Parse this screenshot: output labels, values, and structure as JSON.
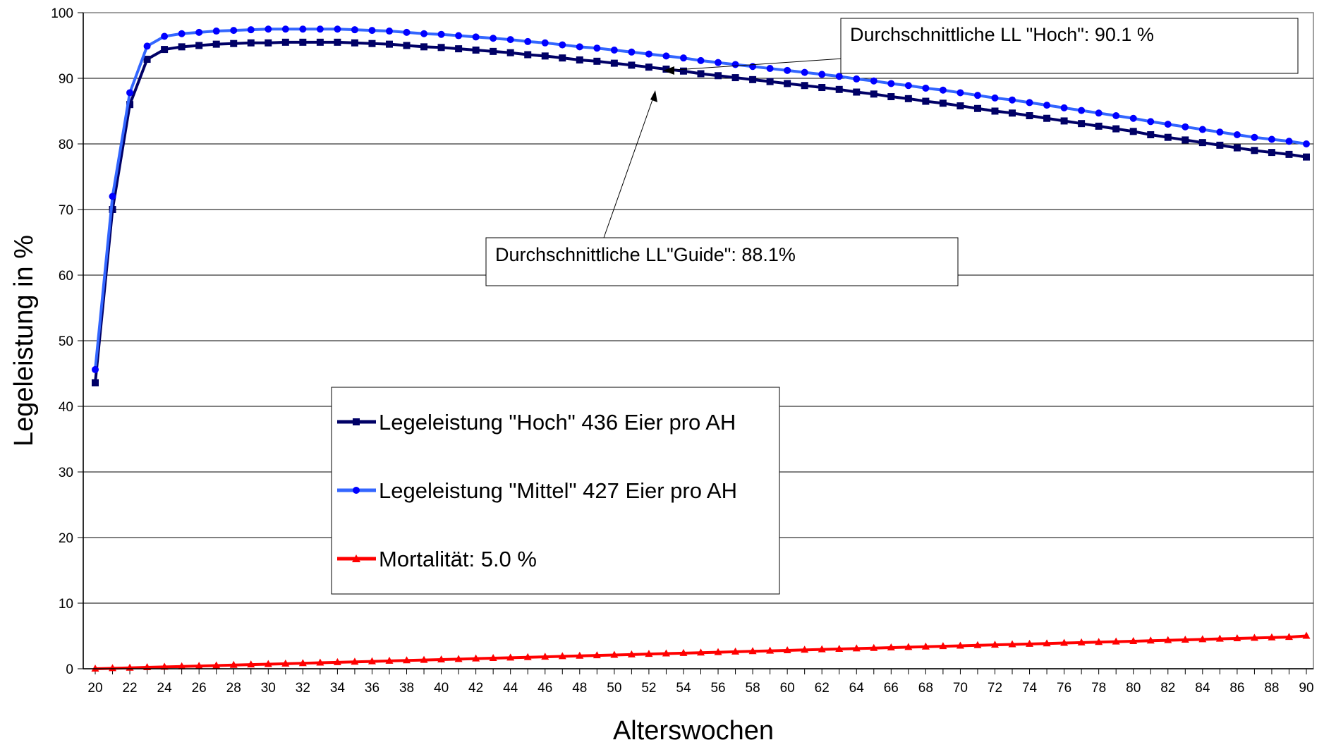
{
  "chart_data": {
    "type": "line",
    "title": "",
    "xlabel": "Alterswochen",
    "ylabel": "Legeleistung in %",
    "ylim": [
      0,
      100
    ],
    "xlim": [
      20,
      90
    ],
    "grid": true,
    "legend_position": "center-left",
    "y_ticks": [
      "0",
      "10",
      "20",
      "30",
      "40",
      "50",
      "60",
      "70",
      "80",
      "90",
      "100"
    ],
    "x_ticks": [
      "20",
      "22",
      "24",
      "26",
      "28",
      "30",
      "32",
      "34",
      "36",
      "38",
      "40",
      "42",
      "44",
      "46",
      "48",
      "50",
      "52",
      "54",
      "56",
      "58",
      "60",
      "62",
      "64",
      "66",
      "68",
      "70",
      "72",
      "74",
      "76",
      "78",
      "80",
      "82",
      "84",
      "86",
      "88",
      "90"
    ],
    "x": [
      20,
      21,
      22,
      23,
      24,
      25,
      26,
      27,
      28,
      29,
      30,
      31,
      32,
      33,
      34,
      35,
      36,
      37,
      38,
      39,
      40,
      41,
      42,
      43,
      44,
      45,
      46,
      47,
      48,
      49,
      50,
      51,
      52,
      53,
      54,
      55,
      56,
      57,
      58,
      59,
      60,
      61,
      62,
      63,
      64,
      65,
      66,
      67,
      68,
      69,
      70,
      71,
      72,
      73,
      74,
      75,
      76,
      77,
      78,
      79,
      80,
      81,
      82,
      83,
      84,
      85,
      86,
      87,
      88,
      89,
      90
    ],
    "series": [
      {
        "name": "Legeleistung \"Hoch\" 436 Eier pro AH",
        "color": "#000066",
        "marker": "square",
        "values": [
          43.6,
          70.0,
          86.0,
          92.9,
          94.4,
          94.8,
          95.0,
          95.2,
          95.3,
          95.4,
          95.4,
          95.5,
          95.5,
          95.5,
          95.5,
          95.4,
          95.3,
          95.2,
          95.0,
          94.8,
          94.7,
          94.5,
          94.3,
          94.1,
          93.9,
          93.6,
          93.4,
          93.1,
          92.8,
          92.6,
          92.3,
          92.0,
          91.7,
          91.4,
          91.1,
          90.7,
          90.4,
          90.1,
          89.8,
          89.5,
          89.2,
          88.9,
          88.6,
          88.3,
          87.9,
          87.6,
          87.2,
          86.9,
          86.5,
          86.2,
          85.8,
          85.4,
          85.0,
          84.7,
          84.3,
          83.9,
          83.5,
          83.1,
          82.7,
          82.3,
          81.9,
          81.4,
          81.0,
          80.6,
          80.2,
          79.8,
          79.4,
          79.0,
          78.7,
          78.4,
          78.0
        ]
      },
      {
        "name": "Legeleistung \"Mittel\" 427 Eier pro AH",
        "color": "#3366ff",
        "marker": "circle",
        "values": [
          45.6,
          72.0,
          87.8,
          94.9,
          96.4,
          96.8,
          97.0,
          97.2,
          97.3,
          97.4,
          97.5,
          97.5,
          97.5,
          97.5,
          97.5,
          97.4,
          97.3,
          97.2,
          97.0,
          96.8,
          96.7,
          96.5,
          96.3,
          96.1,
          95.9,
          95.6,
          95.4,
          95.1,
          94.8,
          94.6,
          94.3,
          94.0,
          93.7,
          93.4,
          93.1,
          92.7,
          92.4,
          92.1,
          91.8,
          91.5,
          91.2,
          90.9,
          90.6,
          90.3,
          89.9,
          89.6,
          89.2,
          88.9,
          88.5,
          88.2,
          87.8,
          87.4,
          87.0,
          86.7,
          86.3,
          85.9,
          85.5,
          85.1,
          84.7,
          84.3,
          83.9,
          83.4,
          83.0,
          82.6,
          82.2,
          81.8,
          81.4,
          81.0,
          80.7,
          80.4,
          80.0
        ]
      },
      {
        "name": "Mortalität: 5.0 %",
        "color": "#ff0000",
        "marker": "triangle",
        "values": [
          0.0,
          0.07,
          0.14,
          0.21,
          0.28,
          0.35,
          0.42,
          0.49,
          0.56,
          0.63,
          0.7,
          0.77,
          0.84,
          0.91,
          0.98,
          1.05,
          1.12,
          1.19,
          1.26,
          1.33,
          1.4,
          1.47,
          1.54,
          1.61,
          1.68,
          1.75,
          1.82,
          1.89,
          1.96,
          2.03,
          2.1,
          2.17,
          2.24,
          2.31,
          2.38,
          2.45,
          2.52,
          2.59,
          2.66,
          2.73,
          2.8,
          2.87,
          2.94,
          3.01,
          3.08,
          3.15,
          3.22,
          3.29,
          3.36,
          3.43,
          3.5,
          3.57,
          3.64,
          3.71,
          3.78,
          3.85,
          3.92,
          3.99,
          4.06,
          4.13,
          4.2,
          4.27,
          4.34,
          4.41,
          4.48,
          4.55,
          4.62,
          4.69,
          4.76,
          4.83,
          5.0
        ]
      }
    ],
    "annotations": [
      {
        "text": "Durchschnittliche LL \"Hoch\":  90.1 %",
        "arrow_to": {
          "x": 53,
          "y": 91.4
        }
      },
      {
        "text": "Durchschnittliche LL\"Guide\":  88.1%",
        "arrow_to": {
          "x": 52,
          "y": 88.2
        }
      }
    ]
  }
}
